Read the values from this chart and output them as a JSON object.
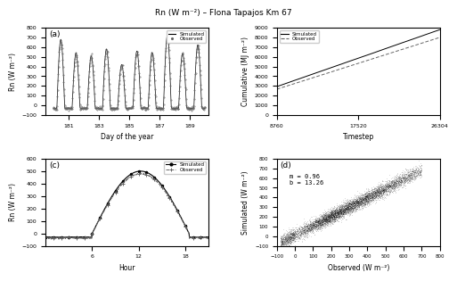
{
  "title": "Rn (W m⁻²) – Flona Tapajos Km 67",
  "panel_a": {
    "label": "(a)",
    "xlabel": "Day of the year",
    "ylabel": "Rn (W m⁻²)",
    "xlim": [
      179.5,
      190.2
    ],
    "ylim": [
      -100,
      800
    ],
    "xticks": [
      181,
      183,
      185,
      187,
      189
    ],
    "yticks": [
      -100,
      0,
      100,
      200,
      300,
      400,
      500,
      600,
      700,
      800
    ],
    "day_start": 180,
    "n_days": 10,
    "timesteps_per_day": 48,
    "sim_peak": [
      680,
      540,
      510,
      580,
      420,
      560,
      545,
      720,
      535,
      625
    ],
    "obs_peak": [
      665,
      520,
      500,
      560,
      410,
      545,
      528,
      700,
      518,
      608
    ],
    "night_val": -30
  },
  "panel_b": {
    "label": "(b)",
    "xlabel": "Timestep",
    "ylabel": "Cumulative (MJ m⁻²)",
    "xlim": [
      8760,
      26304
    ],
    "ylim": [
      0,
      9000
    ],
    "xticks": [
      8760,
      17520,
      26304
    ],
    "yticks": [
      0,
      1000,
      2000,
      3000,
      4000,
      5000,
      6000,
      7000,
      8000,
      9000
    ],
    "n_timesteps": 26304,
    "steps_per_day": 48,
    "sim_daily_peak": 350,
    "obs_daily_peak": 320,
    "night_base": -5
  },
  "panel_c": {
    "label": "(c)",
    "xlabel": "Hour",
    "ylabel": "Rn (W m⁻²)",
    "xlim": [
      0,
      21
    ],
    "ylim": [
      -100,
      600
    ],
    "xticks": [
      6,
      12,
      18
    ],
    "yticks": [
      -100,
      0,
      100,
      200,
      300,
      400,
      500,
      600
    ],
    "sim_peak": 500,
    "obs_peak": 480,
    "night_val": -30
  },
  "panel_d": {
    "label": "(d)",
    "xlabel": "Observed (W m⁻²)",
    "ylabel": "Simulated (W m⁻²)",
    "xlim": [
      -100,
      800
    ],
    "ylim": [
      -100,
      800
    ],
    "xticks": [
      -100,
      0,
      100,
      200,
      300,
      400,
      500,
      600,
      700,
      800
    ],
    "yticks": [
      -100,
      0,
      100,
      200,
      300,
      400,
      500,
      600,
      700,
      800
    ],
    "m": 0.96,
    "b": 13.26,
    "annotation": "m = 0.96\nb = 13.26"
  },
  "colors": {
    "simulated": "#000000",
    "observed": "#666666",
    "background": "#ffffff"
  },
  "legend_simulated": "Simulated",
  "legend_observed": "Observed"
}
